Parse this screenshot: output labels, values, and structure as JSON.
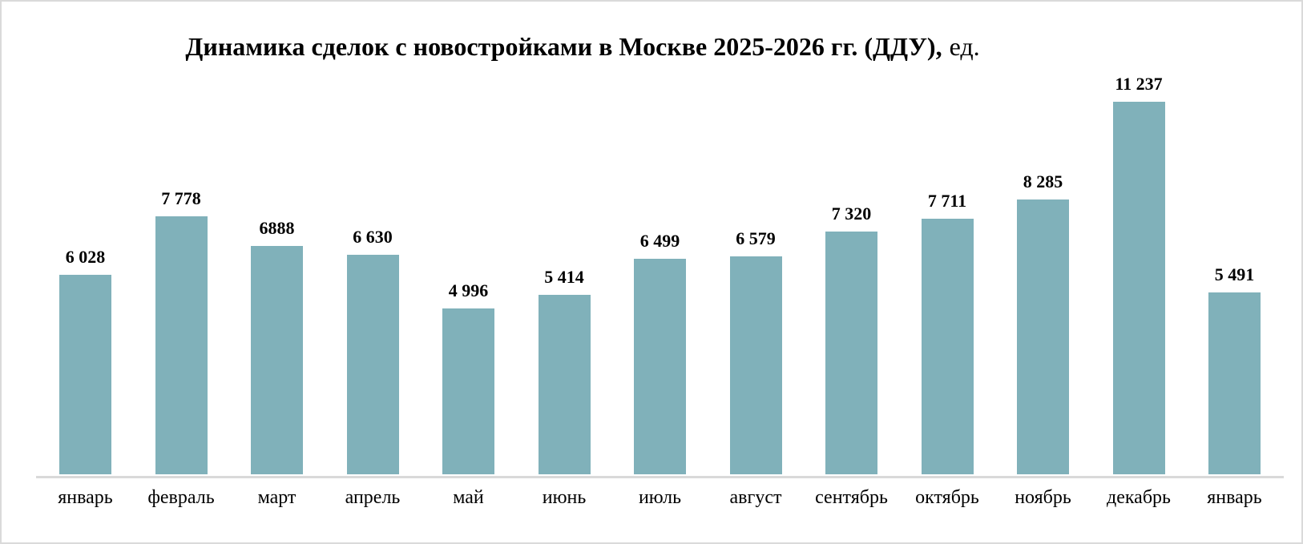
{
  "chart_data": {
    "type": "bar",
    "title_main": "Динамика сделок с новостройками в Москве 2025-2026 гг. (ДДУ),",
    "title_suffix": "ед.",
    "categories": [
      "январь",
      "февраль",
      "март",
      "апрель",
      "май",
      "июнь",
      "июль",
      "август",
      "сентябрь",
      "октябрь",
      "ноябрь",
      "декабрь",
      "январь"
    ],
    "values": [
      6028,
      7778,
      6888,
      6630,
      4996,
      5414,
      6499,
      6579,
      7320,
      7711,
      8285,
      11237,
      5491
    ],
    "value_labels": [
      "6 028",
      "7 778",
      "6888",
      "6 630",
      "4 996",
      "5 414",
      "6 499",
      "6 579",
      "7 320",
      "7 711",
      "8 285",
      "11 237",
      "5 491"
    ],
    "xlabel": "",
    "ylabel": "",
    "ylim": [
      0,
      11237
    ],
    "grid": false,
    "legend": false,
    "colors": {
      "bar": "#80B1BA",
      "axis_line": "#D9D9D9",
      "border": "#DADADA",
      "text": "#000000"
    }
  }
}
